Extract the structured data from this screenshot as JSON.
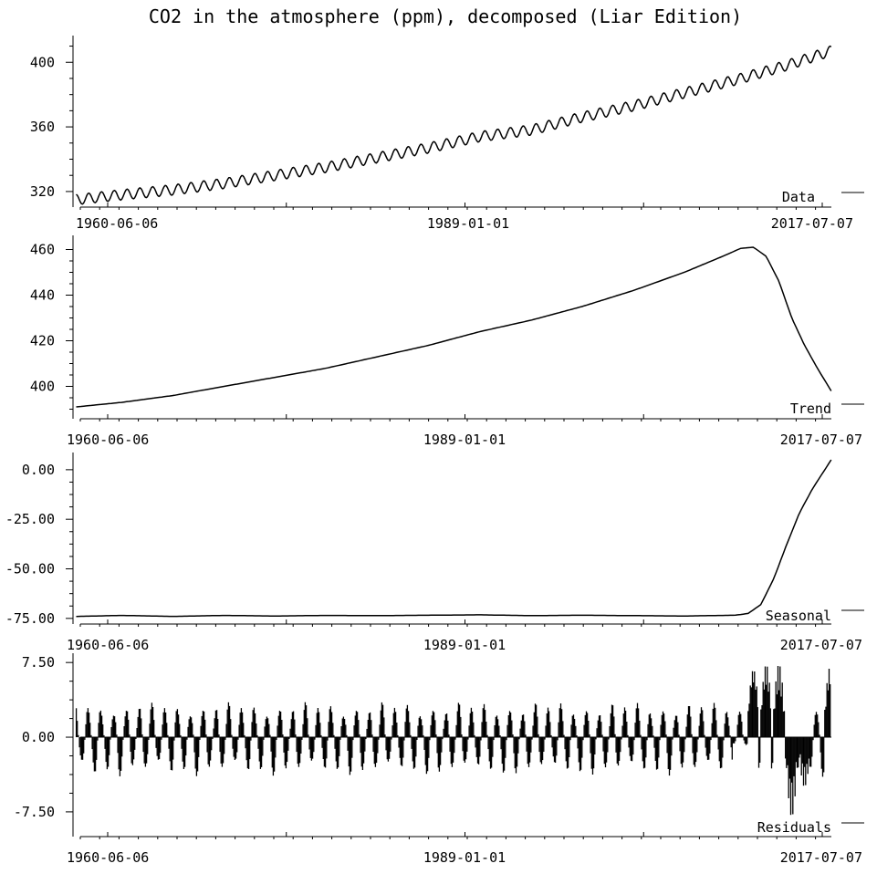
{
  "title": "CO2 in the atmosphere (ppm), decomposed (Liar Edition)",
  "colors": {
    "line": "#000000",
    "background": "#ffffff"
  },
  "chart_data": [
    {
      "name": "data",
      "type": "line",
      "panel_label": "Data",
      "x_range": [
        "1958-03-01",
        "2017-07-07"
      ],
      "ylim": [
        316,
        412
      ],
      "y_ticks": [
        320,
        360,
        400
      ],
      "y_tick_labels": [
        "320",
        "360",
        "400"
      ],
      "x_tick_labels": [
        "1960-06-06",
        "1989-01-01",
        "2017-07-07"
      ],
      "x": [
        "1958-06-01",
        "1962-01-01",
        "1966-01-01",
        "1970-01-01",
        "1974-01-01",
        "1978-01-01",
        "1982-01-01",
        "1986-01-01",
        "1990-01-01",
        "1994-01-01",
        "1998-01-01",
        "2002-01-01",
        "2006-01-01",
        "2010-01-01",
        "2014-01-01",
        "2017-07-01"
      ],
      "y": [
        315,
        318,
        321,
        325,
        330,
        335,
        341,
        347,
        354,
        358,
        366,
        373,
        381,
        389,
        398,
        407
      ],
      "seasonal_amplitude_ppm": 3.2
    },
    {
      "name": "trend",
      "type": "line",
      "panel_label": "Trend",
      "x_range": [
        "1958-03-01",
        "2017-07-07"
      ],
      "ylim": [
        389,
        463
      ],
      "y_ticks": [
        400,
        420,
        440,
        460
      ],
      "y_tick_labels": [
        "400",
        "420",
        "440",
        "460"
      ],
      "x_tick_labels": [
        "1960-06-06",
        "1989-01-01",
        "2017-07-07"
      ],
      "x": [
        "1958-06-01",
        "1962-01-01",
        "1966-01-01",
        "1970-01-01",
        "1974-01-01",
        "1978-01-01",
        "1982-01-01",
        "1986-01-01",
        "1990-01-01",
        "1994-01-01",
        "1998-01-01",
        "2002-01-01",
        "2006-01-01",
        "2009-01-01",
        "2010-06-01",
        "2011-06-01",
        "2012-06-01",
        "2013-06-01",
        "2014-06-01",
        "2015-06-01",
        "2016-06-01",
        "2017-07-01"
      ],
      "y": [
        391,
        393,
        396,
        400,
        404,
        408,
        413,
        418,
        424,
        429,
        435,
        442,
        450,
        457,
        460.5,
        461,
        457,
        446,
        430,
        418,
        408,
        398
      ]
    },
    {
      "name": "seasonal",
      "type": "line",
      "panel_label": "Seasonal",
      "x_range": [
        "1958-03-01",
        "2017-07-07"
      ],
      "ylim": [
        -76,
        5
      ],
      "y_ticks": [
        -75,
        -50,
        -25,
        0
      ],
      "y_tick_labels": [
        "-75.00",
        "-50.00",
        "-25.00",
        "0.00"
      ],
      "x_tick_labels": [
        "1960-06-06",
        "1989-01-01",
        "2017-07-07"
      ],
      "x": [
        "1958-06-01",
        "1962-01-01",
        "1966-01-01",
        "1970-01-01",
        "1974-01-01",
        "1978-01-01",
        "1982-01-01",
        "1986-01-01",
        "1990-01-01",
        "1994-01-01",
        "1998-01-01",
        "2002-01-01",
        "2006-01-01",
        "2010-01-01",
        "2011-01-01",
        "2012-01-01",
        "2013-01-01",
        "2014-01-01",
        "2015-01-01",
        "2016-01-01",
        "2017-07-01"
      ],
      "y": [
        -74,
        -73.5,
        -74,
        -73.5,
        -73.8,
        -73.5,
        -73.6,
        -73.4,
        -73.2,
        -73.6,
        -73.4,
        -73.6,
        -73.8,
        -73.4,
        -72.5,
        -68,
        -55,
        -38,
        -22,
        -10,
        5
      ]
    },
    {
      "name": "residuals",
      "type": "bar",
      "panel_label": "Residuals",
      "x_range": [
        "1958-03-01",
        "2017-07-07"
      ],
      "ylim": [
        -8.7,
        7.7
      ],
      "y_ticks": [
        -7.5,
        0,
        7.5
      ],
      "y_tick_labels": [
        "-7.50",
        "0.00",
        "7.50"
      ],
      "x_tick_labels": [
        "1960-06-06",
        "1989-01-01",
        "2017-07-07"
      ],
      "baseline": 0,
      "typical_positive_peak": 2.8,
      "typical_negative_peak": -3.1,
      "late_excursions": [
        {
          "x": "2011-06-01",
          "value": 7.2
        },
        {
          "x": "2012-06-01",
          "value": 7.5
        },
        {
          "x": "2013-06-01",
          "value": 7.4
        },
        {
          "x": "2014-06-01",
          "value": -8.0
        },
        {
          "x": "2015-06-01",
          "value": -5.0
        },
        {
          "x": "2017-06-01",
          "value": 7.3
        }
      ]
    }
  ]
}
